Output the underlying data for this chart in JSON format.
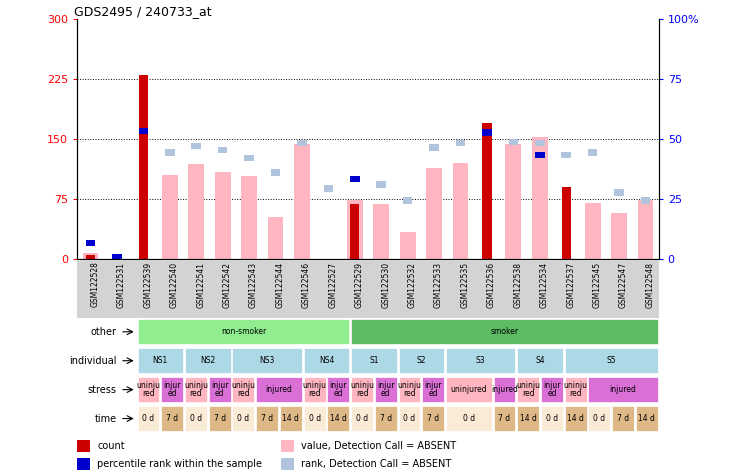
{
  "title": "GDS2495 / 240733_at",
  "samples": [
    "GSM122528",
    "GSM122531",
    "GSM122539",
    "GSM122540",
    "GSM122541",
    "GSM122542",
    "GSM122543",
    "GSM122544",
    "GSM122546",
    "GSM122527",
    "GSM122529",
    "GSM122530",
    "GSM122532",
    "GSM122533",
    "GSM122535",
    "GSM122536",
    "GSM122538",
    "GSM122534",
    "GSM122537",
    "GSM122545",
    "GSM122547",
    "GSM122548"
  ],
  "count_values": [
    5,
    2,
    230,
    0,
    0,
    0,
    0,
    0,
    0,
    0,
    68,
    0,
    0,
    0,
    0,
    170,
    0,
    0,
    90,
    0,
    0,
    0
  ],
  "rank_values": [
    20,
    2,
    160,
    0,
    0,
    0,
    0,
    0,
    0,
    0,
    100,
    0,
    0,
    0,
    0,
    158,
    0,
    130,
    0,
    0,
    0,
    0
  ],
  "value_absent": [
    7,
    0,
    0,
    105,
    118,
    108,
    103,
    52,
    143,
    0,
    73,
    68,
    33,
    113,
    120,
    0,
    143,
    152,
    0,
    70,
    57,
    73
  ],
  "rank_absent": [
    20,
    2,
    0,
    133,
    141,
    136,
    126,
    108,
    145,
    88,
    0,
    93,
    73,
    139,
    145,
    0,
    146,
    145,
    130,
    133,
    83,
    73
  ],
  "has_count": [
    true,
    false,
    true,
    false,
    false,
    false,
    false,
    false,
    false,
    false,
    true,
    false,
    false,
    false,
    false,
    true,
    false,
    false,
    true,
    false,
    false,
    false
  ],
  "has_rank": [
    true,
    true,
    true,
    false,
    false,
    false,
    false,
    false,
    false,
    false,
    true,
    false,
    false,
    false,
    false,
    true,
    false,
    true,
    false,
    false,
    false,
    false
  ],
  "ylim_left": [
    0,
    300
  ],
  "ylim_right": [
    0,
    100
  ],
  "yticks_left": [
    0,
    75,
    150,
    225,
    300
  ],
  "yticks_right": [
    0,
    25,
    50,
    75,
    100
  ],
  "ytick_labels_left": [
    "0",
    "75",
    "150",
    "225",
    "300"
  ],
  "ytick_labels_right": [
    "0",
    "25",
    "50",
    "75",
    "100%"
  ],
  "color_count_bar": "#CC0000",
  "color_rank_bar": "#0000CC",
  "color_value_absent": "#FFB6C1",
  "color_rank_absent": "#B0C4DE",
  "other_row": [
    {
      "label": "non-smoker",
      "start": 0,
      "end": 9,
      "color": "#90EE90"
    },
    {
      "label": "smoker",
      "start": 9,
      "end": 22,
      "color": "#5DBB63"
    }
  ],
  "individual_row": [
    {
      "label": "NS1",
      "start": 0,
      "end": 2,
      "color": "#ADD8E6"
    },
    {
      "label": "NS2",
      "start": 2,
      "end": 4,
      "color": "#ADD8E6"
    },
    {
      "label": "NS3",
      "start": 4,
      "end": 7,
      "color": "#ADD8E6"
    },
    {
      "label": "NS4",
      "start": 7,
      "end": 9,
      "color": "#ADD8E6"
    },
    {
      "label": "S1",
      "start": 9,
      "end": 11,
      "color": "#ADD8E6"
    },
    {
      "label": "S2",
      "start": 11,
      "end": 13,
      "color": "#ADD8E6"
    },
    {
      "label": "S3",
      "start": 13,
      "end": 16,
      "color": "#ADD8E6"
    },
    {
      "label": "S4",
      "start": 16,
      "end": 18,
      "color": "#ADD8E6"
    },
    {
      "label": "S5",
      "start": 18,
      "end": 22,
      "color": "#ADD8E6"
    }
  ],
  "stress_row": [
    {
      "label": "uninju\nred",
      "start": 0,
      "end": 1,
      "color": "#FFB6C1"
    },
    {
      "label": "injur\ned",
      "start": 1,
      "end": 2,
      "color": "#DA70D6"
    },
    {
      "label": "uninju\nred",
      "start": 2,
      "end": 3,
      "color": "#FFB6C1"
    },
    {
      "label": "injur\ned",
      "start": 3,
      "end": 4,
      "color": "#DA70D6"
    },
    {
      "label": "uninju\nred",
      "start": 4,
      "end": 5,
      "color": "#FFB6C1"
    },
    {
      "label": "injured",
      "start": 5,
      "end": 7,
      "color": "#DA70D6"
    },
    {
      "label": "uninju\nred",
      "start": 7,
      "end": 8,
      "color": "#FFB6C1"
    },
    {
      "label": "injur\ned",
      "start": 8,
      "end": 9,
      "color": "#DA70D6"
    },
    {
      "label": "uninju\nred",
      "start": 9,
      "end": 10,
      "color": "#FFB6C1"
    },
    {
      "label": "injur\ned",
      "start": 10,
      "end": 11,
      "color": "#DA70D6"
    },
    {
      "label": "uninju\nred",
      "start": 11,
      "end": 12,
      "color": "#FFB6C1"
    },
    {
      "label": "injur\ned",
      "start": 12,
      "end": 13,
      "color": "#DA70D6"
    },
    {
      "label": "uninjured",
      "start": 13,
      "end": 15,
      "color": "#FFB6C1"
    },
    {
      "label": "injured",
      "start": 15,
      "end": 16,
      "color": "#DA70D6"
    },
    {
      "label": "uninju\nred",
      "start": 16,
      "end": 17,
      "color": "#FFB6C1"
    },
    {
      "label": "injur\ned",
      "start": 17,
      "end": 18,
      "color": "#DA70D6"
    },
    {
      "label": "uninju\nred",
      "start": 18,
      "end": 19,
      "color": "#FFB6C1"
    },
    {
      "label": "injured",
      "start": 19,
      "end": 22,
      "color": "#DA70D6"
    }
  ],
  "time_row": [
    {
      "label": "0 d",
      "start": 0,
      "end": 1,
      "color": "#FAEBD7"
    },
    {
      "label": "7 d",
      "start": 1,
      "end": 2,
      "color": "#DEB887"
    },
    {
      "label": "0 d",
      "start": 2,
      "end": 3,
      "color": "#FAEBD7"
    },
    {
      "label": "7 d",
      "start": 3,
      "end": 4,
      "color": "#DEB887"
    },
    {
      "label": "0 d",
      "start": 4,
      "end": 5,
      "color": "#FAEBD7"
    },
    {
      "label": "7 d",
      "start": 5,
      "end": 6,
      "color": "#DEB887"
    },
    {
      "label": "14 d",
      "start": 6,
      "end": 7,
      "color": "#DEB887"
    },
    {
      "label": "0 d",
      "start": 7,
      "end": 8,
      "color": "#FAEBD7"
    },
    {
      "label": "14 d",
      "start": 8,
      "end": 9,
      "color": "#DEB887"
    },
    {
      "label": "0 d",
      "start": 9,
      "end": 10,
      "color": "#FAEBD7"
    },
    {
      "label": "7 d",
      "start": 10,
      "end": 11,
      "color": "#DEB887"
    },
    {
      "label": "0 d",
      "start": 11,
      "end": 12,
      "color": "#FAEBD7"
    },
    {
      "label": "7 d",
      "start": 12,
      "end": 13,
      "color": "#DEB887"
    },
    {
      "label": "0 d",
      "start": 13,
      "end": 15,
      "color": "#FAEBD7"
    },
    {
      "label": "7 d",
      "start": 15,
      "end": 16,
      "color": "#DEB887"
    },
    {
      "label": "14 d",
      "start": 16,
      "end": 17,
      "color": "#DEB887"
    },
    {
      "label": "0 d",
      "start": 17,
      "end": 18,
      "color": "#FAEBD7"
    },
    {
      "label": "14 d",
      "start": 18,
      "end": 19,
      "color": "#DEB887"
    },
    {
      "label": "0 d",
      "start": 19,
      "end": 20,
      "color": "#FAEBD7"
    },
    {
      "label": "7 d",
      "start": 20,
      "end": 21,
      "color": "#DEB887"
    },
    {
      "label": "14 d",
      "start": 21,
      "end": 22,
      "color": "#DEB887"
    }
  ]
}
